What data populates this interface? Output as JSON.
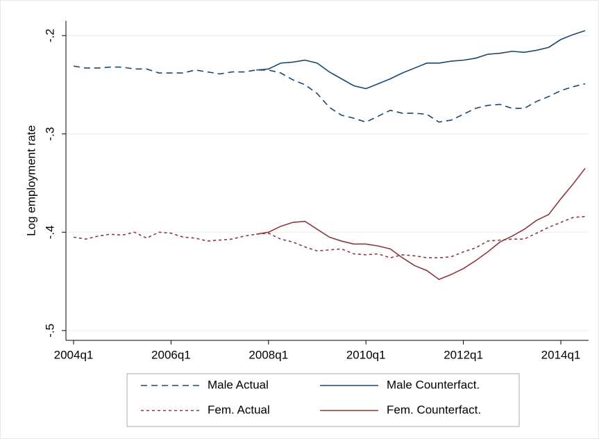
{
  "chart_data": {
    "type": "line",
    "y_label": "Log employment rate",
    "categories": [
      "2004q1",
      null,
      null,
      null,
      null,
      null,
      null,
      null,
      "2006q1",
      null,
      null,
      null,
      null,
      null,
      null,
      null,
      "2008q1",
      null,
      null,
      null,
      null,
      null,
      null,
      null,
      "2010q1",
      null,
      null,
      null,
      null,
      null,
      null,
      null,
      "2012q1",
      null,
      null,
      null,
      null,
      null,
      null,
      null,
      "2014q1",
      null,
      null
    ],
    "ylim": [
      -0.51,
      -0.185
    ],
    "yticks": [
      {
        "value": -0.5,
        "label": "-.5"
      },
      {
        "value": -0.4,
        "label": "-.4"
      },
      {
        "value": -0.3,
        "label": "-.3"
      },
      {
        "value": -0.2,
        "label": "-.2"
      }
    ],
    "grid": true,
    "series": [
      {
        "name": "Male Actual",
        "color": "#1a476f",
        "dash": "dashed",
        "values": [
          -0.231,
          -0.233,
          -0.233,
          -0.232,
          -0.232,
          -0.234,
          -0.234,
          -0.238,
          -0.238,
          -0.238,
          -0.235,
          -0.237,
          -0.239,
          -0.237,
          -0.237,
          -0.235,
          -0.235,
          -0.238,
          -0.245,
          -0.25,
          -0.259,
          -0.273,
          -0.281,
          -0.284,
          -0.288,
          -0.282,
          -0.276,
          -0.279,
          -0.279,
          -0.28,
          -0.288,
          -0.286,
          -0.28,
          -0.274,
          -0.271,
          -0.27,
          -0.274,
          -0.274,
          -0.267,
          -0.262,
          -0.256,
          -0.252,
          -0.249
        ]
      },
      {
        "name": "Male Counterfact.",
        "color": "#1a476f",
        "dash": "solid",
        "values": [
          null,
          null,
          null,
          null,
          null,
          null,
          null,
          null,
          null,
          null,
          null,
          null,
          null,
          null,
          null,
          -0.235,
          -0.234,
          -0.228,
          -0.227,
          -0.225,
          -0.228,
          -0.237,
          -0.244,
          -0.251,
          -0.254,
          -0.249,
          -0.244,
          -0.238,
          -0.233,
          -0.228,
          -0.228,
          -0.226,
          -0.225,
          -0.223,
          -0.219,
          -0.218,
          -0.216,
          -0.217,
          -0.215,
          -0.212,
          -0.204,
          -0.199,
          -0.195
        ]
      },
      {
        "name": "Fem. Actual",
        "color": "#90353b",
        "dash": "short",
        "values": [
          -0.405,
          -0.407,
          -0.404,
          -0.402,
          -0.403,
          -0.4,
          -0.406,
          -0.4,
          -0.401,
          -0.405,
          -0.406,
          -0.409,
          -0.408,
          -0.407,
          -0.404,
          -0.402,
          -0.401,
          -0.407,
          -0.41,
          -0.415,
          -0.419,
          -0.418,
          -0.417,
          -0.422,
          -0.423,
          -0.422,
          -0.426,
          -0.423,
          -0.424,
          -0.426,
          -0.426,
          -0.425,
          -0.42,
          -0.416,
          -0.409,
          -0.408,
          -0.407,
          -0.407,
          -0.401,
          -0.395,
          -0.39,
          -0.385,
          -0.384
        ]
      },
      {
        "name": "Fem. Counterfact.",
        "color": "#90353b",
        "dash": "solid",
        "values": [
          null,
          null,
          null,
          null,
          null,
          null,
          null,
          null,
          null,
          null,
          null,
          null,
          null,
          null,
          null,
          -0.402,
          -0.4,
          -0.394,
          -0.39,
          -0.389,
          -0.397,
          -0.405,
          -0.409,
          -0.412,
          -0.412,
          -0.414,
          -0.417,
          -0.426,
          -0.434,
          -0.439,
          -0.448,
          -0.443,
          -0.437,
          -0.429,
          -0.42,
          -0.41,
          -0.404,
          -0.397,
          -0.388,
          -0.382,
          -0.366,
          -0.351,
          -0.335
        ]
      }
    ]
  }
}
